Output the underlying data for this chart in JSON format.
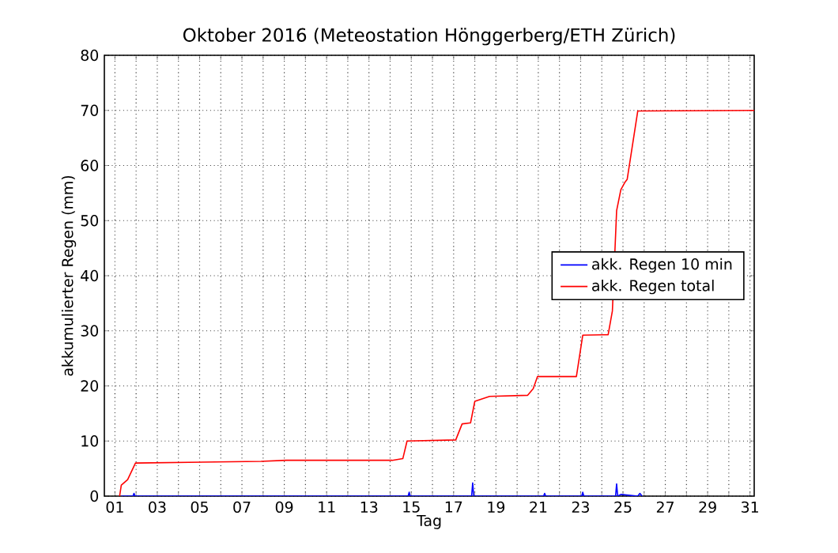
{
  "chart_data": {
    "type": "line",
    "title": "Oktober 2016  (Meteostation Hönggerberg/ETH Zürich)",
    "xlabel": "Tag",
    "ylabel": "akkumulierter Regen (mm)",
    "xlim": [
      0.5,
      31.2
    ],
    "ylim": [
      0,
      80
    ],
    "xticks": [
      {
        "value": 1,
        "label": "01"
      },
      {
        "value": 2,
        "label": null
      },
      {
        "value": 3,
        "label": "03"
      },
      {
        "value": 4,
        "label": null
      },
      {
        "value": 5,
        "label": "05"
      },
      {
        "value": 6,
        "label": null
      },
      {
        "value": 7,
        "label": "07"
      },
      {
        "value": 8,
        "label": null
      },
      {
        "value": 9,
        "label": "09"
      },
      {
        "value": 10,
        "label": null
      },
      {
        "value": 11,
        "label": "11"
      },
      {
        "value": 12,
        "label": null
      },
      {
        "value": 13,
        "label": "13"
      },
      {
        "value": 14,
        "label": null
      },
      {
        "value": 15,
        "label": "15"
      },
      {
        "value": 16,
        "label": null
      },
      {
        "value": 17,
        "label": "17"
      },
      {
        "value": 18,
        "label": null
      },
      {
        "value": 19,
        "label": "19"
      },
      {
        "value": 20,
        "label": null
      },
      {
        "value": 21,
        "label": "21"
      },
      {
        "value": 22,
        "label": null
      },
      {
        "value": 23,
        "label": "23"
      },
      {
        "value": 24,
        "label": null
      },
      {
        "value": 25,
        "label": "25"
      },
      {
        "value": 26,
        "label": null
      },
      {
        "value": 27,
        "label": "27"
      },
      {
        "value": 28,
        "label": null
      },
      {
        "value": 29,
        "label": "29"
      },
      {
        "value": 30,
        "label": null
      },
      {
        "value": 31,
        "label": "31"
      }
    ],
    "yticks": [
      0,
      10,
      20,
      30,
      40,
      50,
      60,
      70,
      80
    ],
    "grid": true,
    "legend": "right",
    "line_style": "solid",
    "series": [
      {
        "name": "akk. Regen 10 min",
        "color": "#0000ff",
        "x": [
          1.3,
          1.85,
          1.9,
          1.95,
          14.85,
          14.9,
          14.95,
          17.85,
          17.9,
          17.95,
          21.25,
          21.3,
          21.35,
          23.05,
          23.1,
          23.15,
          24.65,
          24.7,
          24.75,
          24.9,
          25.7,
          25.8,
          25.9
        ],
        "values": [
          0,
          0,
          0.5,
          0,
          0,
          0.7,
          0,
          0,
          2.4,
          0,
          0,
          0.5,
          0,
          0,
          0.7,
          0,
          0,
          2.2,
          0,
          0.3,
          0,
          0.5,
          0
        ]
      },
      {
        "name": "akk. Regen total",
        "color": "#ff0000",
        "x": [
          1.22,
          1.3,
          1.6,
          1.97,
          7.9,
          9.1,
          14.1,
          14.6,
          14.8,
          17.1,
          17.4,
          17.8,
          18.0,
          18.7,
          20.5,
          20.76,
          20.96,
          22.8,
          23.1,
          24.3,
          24.5,
          24.7,
          24.9,
          25.1,
          25.2,
          25.7,
          31.2
        ],
        "values": [
          0,
          2,
          3,
          6,
          6.3,
          6.5,
          6.5,
          6.8,
          10,
          10.2,
          13.1,
          13.3,
          17.2,
          18.1,
          18.3,
          19.5,
          21.7,
          21.7,
          29.2,
          29.3,
          33.6,
          51.8,
          55.6,
          57,
          57.5,
          69.9,
          70
        ]
      }
    ]
  }
}
